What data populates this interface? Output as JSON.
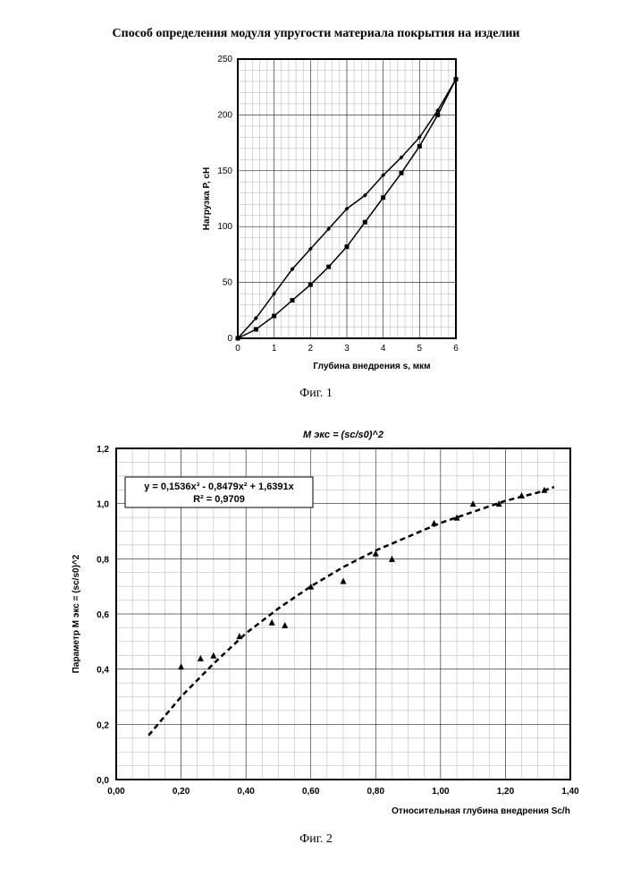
{
  "page_title": "Способ определения модуля упругости материала покрытия на изделии",
  "fig1_caption": "Фиг. 1",
  "fig2_caption": "Фиг. 2",
  "chart1": {
    "type": "line",
    "xlabel": "Глубина внедрения s, мкм",
    "ylabel": "Нагрузка P, cH",
    "xlim": [
      0,
      6
    ],
    "ylim": [
      0,
      250
    ],
    "xtick_step": 1,
    "ytick_step": 50,
    "x_minor_divs": 5,
    "y_minor_divs": 5,
    "background_color": "#ffffff",
    "major_grid_color": "#000000",
    "minor_grid_color": "#b0b0b0",
    "series": [
      {
        "name": "upper",
        "marker": "diamond",
        "marker_size": 5,
        "color": "#000000",
        "points": [
          [
            0,
            0
          ],
          [
            0.5,
            18
          ],
          [
            1,
            40
          ],
          [
            1.5,
            62
          ],
          [
            2,
            80
          ],
          [
            2.5,
            98
          ],
          [
            3,
            116
          ],
          [
            3.5,
            128
          ],
          [
            4,
            146
          ],
          [
            4.5,
            162
          ],
          [
            5,
            180
          ],
          [
            5.5,
            204
          ],
          [
            6,
            232
          ]
        ]
      },
      {
        "name": "lower",
        "marker": "square",
        "marker_size": 5,
        "color": "#000000",
        "points": [
          [
            0,
            0
          ],
          [
            0.5,
            8
          ],
          [
            1,
            20
          ],
          [
            1.5,
            34
          ],
          [
            2,
            48
          ],
          [
            2.5,
            64
          ],
          [
            3,
            82
          ],
          [
            3.5,
            104
          ],
          [
            4,
            126
          ],
          [
            4.5,
            148
          ],
          [
            5,
            172
          ],
          [
            5.5,
            200
          ],
          [
            6,
            232
          ]
        ]
      }
    ]
  },
  "chart2": {
    "type": "scatter",
    "chart_title": "М экс  =  (sc/s0)^2",
    "xlabel": "Относительная глубина внедрения Sc/h",
    "ylabel": "Параметр М экс  =  (sc/s0)^2",
    "xlim": [
      0.0,
      1.4
    ],
    "ylim": [
      0.0,
      1.2
    ],
    "xtick_step": 0.2,
    "ytick_step": 0.2,
    "x_minor_divs": 4,
    "y_minor_divs": 4,
    "background_color": "#ffffff",
    "major_grid_color": "#000000",
    "minor_grid_color": "#b0b0b0",
    "equation_box": {
      "line1": "y = 0,1536x³ - 0,8479x² + 1,6391x",
      "line2": "R² = 0,9709"
    },
    "marker": "triangle",
    "marker_size": 7,
    "marker_color": "#000000",
    "points": [
      [
        0.2,
        0.41
      ],
      [
        0.26,
        0.44
      ],
      [
        0.3,
        0.45
      ],
      [
        0.38,
        0.52
      ],
      [
        0.48,
        0.57
      ],
      [
        0.52,
        0.56
      ],
      [
        0.6,
        0.7
      ],
      [
        0.7,
        0.72
      ],
      [
        0.8,
        0.82
      ],
      [
        0.85,
        0.8
      ],
      [
        0.98,
        0.93
      ],
      [
        1.05,
        0.95
      ],
      [
        1.1,
        1.0
      ],
      [
        1.18,
        1.0
      ],
      [
        1.25,
        1.03
      ],
      [
        1.32,
        1.05
      ]
    ],
    "fit_curve": [
      [
        0.1,
        0.16
      ],
      [
        0.2,
        0.3
      ],
      [
        0.3,
        0.42
      ],
      [
        0.4,
        0.53
      ],
      [
        0.5,
        0.62
      ],
      [
        0.6,
        0.7
      ],
      [
        0.7,
        0.77
      ],
      [
        0.8,
        0.83
      ],
      [
        0.9,
        0.88
      ],
      [
        1.0,
        0.93
      ],
      [
        1.1,
        0.97
      ],
      [
        1.2,
        1.01
      ],
      [
        1.3,
        1.04
      ],
      [
        1.35,
        1.06
      ]
    ]
  }
}
